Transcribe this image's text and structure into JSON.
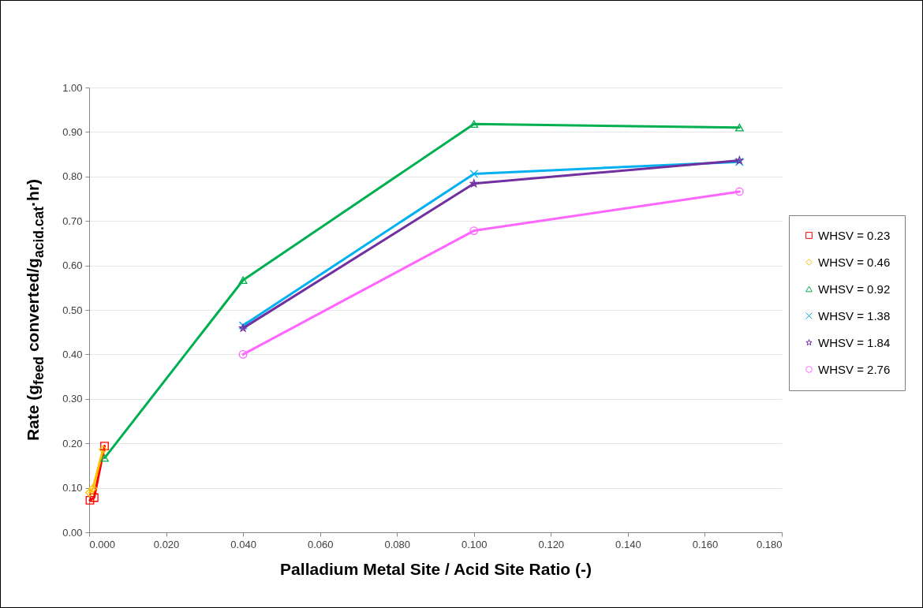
{
  "chart_data": {
    "type": "line",
    "xlabel": "Palladium Metal Site / Acid Site Ratio (-)",
    "ylabel": "Rate (g$_{feed}$ converted/g$_{acid.cat}$·hr)",
    "xlim": [
      0,
      0.18
    ],
    "xticks": [
      {
        "value": 0,
        "label": "0.000"
      },
      {
        "value": 0.02,
        "label": "0.020"
      },
      {
        "value": 0.04,
        "label": "0.040"
      },
      {
        "value": 0.06,
        "label": "0.060"
      },
      {
        "value": 0.08,
        "label": "0.080"
      },
      {
        "value": 0.1,
        "label": "0.100"
      },
      {
        "value": 0.12,
        "label": "0.120"
      },
      {
        "value": 0.14,
        "label": "0.140"
      },
      {
        "value": 0.16,
        "label": "0.160"
      },
      {
        "value": 0.18,
        "label": "0.180"
      }
    ],
    "ylim": [
      0,
      1
    ],
    "yticks": [
      {
        "value": 0,
        "label": "0.00"
      },
      {
        "value": 0.1,
        "label": "0.10"
      },
      {
        "value": 0.2,
        "label": "0.20"
      },
      {
        "value": 0.3,
        "label": "0.30"
      },
      {
        "value": 0.4,
        "label": "0.40"
      },
      {
        "value": 0.5,
        "label": "0.50"
      },
      {
        "value": 0.6,
        "label": "0.60"
      },
      {
        "value": 0.7,
        "label": "0.70"
      },
      {
        "value": 0.8,
        "label": "0.80"
      },
      {
        "value": 0.9,
        "label": "0.90"
      },
      {
        "value": 1,
        "label": "1.00"
      }
    ],
    "grid": "y",
    "legend": "right",
    "line_style": "solid",
    "series": [
      {
        "name": "WHSV = 0.23",
        "color": "#ff0000",
        "marker": "square",
        "x": [
          0.0002,
          0.0013,
          0.004
        ],
        "values": [
          0.072,
          0.078,
          0.194
        ]
      },
      {
        "name": "WHSV = 0.46",
        "color": "#ffc000",
        "marker": "diamond",
        "x": [
          0.0001,
          0.001,
          0.0036
        ],
        "values": [
          0.089,
          0.099,
          0.186
        ]
      },
      {
        "name": "WHSV = 0.92",
        "color": "#00b050",
        "marker": "triangle",
        "x": [
          0.004,
          0.04,
          0.1,
          0.169
        ],
        "values": [
          0.167,
          0.567,
          0.918,
          0.91
        ]
      },
      {
        "name": "WHSV = 1.38",
        "color": "#00b0f0",
        "marker": "cross",
        "x": [
          0.04,
          0.1,
          0.169
        ],
        "values": [
          0.465,
          0.806,
          0.833
        ]
      },
      {
        "name": "WHSV = 1.84",
        "color": "#7030a0",
        "marker": "star",
        "x": [
          0.04,
          0.1,
          0.169
        ],
        "values": [
          0.459,
          0.784,
          0.836
        ]
      },
      {
        "name": "WHSV = 2.76",
        "color": "#ff66ff",
        "marker": "circle",
        "x": [
          0.04,
          0.1,
          0.169
        ],
        "values": [
          0.4,
          0.678,
          0.766
        ]
      }
    ]
  }
}
